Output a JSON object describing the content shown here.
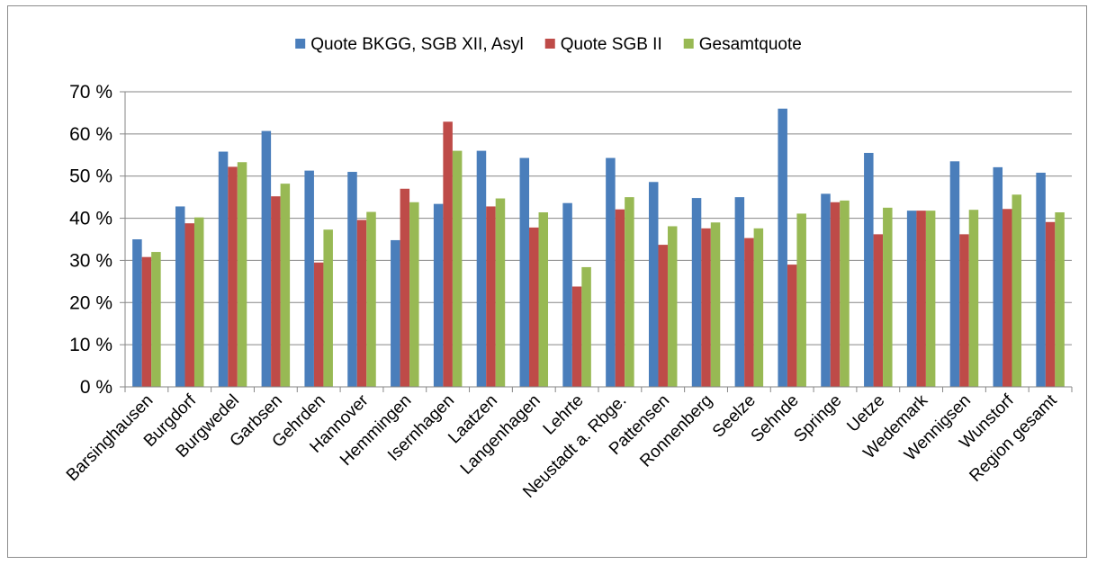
{
  "chart_data": {
    "type": "bar",
    "title": "",
    "xlabel": "",
    "ylabel": "",
    "ylim": [
      0,
      70
    ],
    "y_ticks": [
      "0 %",
      "10 %",
      "20 %",
      "30 %",
      "40 %",
      "50 %",
      "60 %",
      "70 %"
    ],
    "grid": true,
    "legend_position": "top",
    "categories": [
      "Barsinghausen",
      "Burgdorf",
      "Burgwedel",
      "Garbsen",
      "Gehrden",
      "Hannover",
      "Hemmingen",
      "Isernhagen",
      "Laatzen",
      "Langenhagen",
      "Lehrte",
      "Neustadt a. Rbge.",
      "Pattensen",
      "Ronnenberg",
      "Seelze",
      "Sehnde",
      "Springe",
      "Uetze",
      "Wedemark",
      "Wennigsen",
      "Wunstorf",
      "Region gesamt"
    ],
    "series": [
      {
        "name": "Quote BKGG, SGB XII, Asyl",
        "color": "#4a7ebb",
        "values": [
          35,
          42.8,
          55.8,
          60.7,
          51.3,
          51,
          34.8,
          43.4,
          56,
          54.3,
          43.6,
          54.3,
          48.6,
          44.8,
          45,
          66,
          45.8,
          55.5,
          41.8,
          53.5,
          52.1,
          50.8
        ]
      },
      {
        "name": "Quote SGB II",
        "color": "#be4b48",
        "values": [
          30.8,
          38.8,
          52.2,
          45.2,
          29.5,
          39.6,
          47,
          62.9,
          42.8,
          37.8,
          23.8,
          42.1,
          33.7,
          37.6,
          35.3,
          29,
          43.8,
          36.2,
          41.8,
          36.2,
          42.2,
          39.1
        ]
      },
      {
        "name": "Gesamtquote",
        "color": "#98b954",
        "values": [
          32,
          40.2,
          53.3,
          48.2,
          37.3,
          41.5,
          43.8,
          56,
          44.7,
          41.4,
          28.4,
          45,
          38.1,
          39,
          37.6,
          41.1,
          44.2,
          42.5,
          41.8,
          42,
          45.6,
          41.4
        ]
      }
    ]
  }
}
